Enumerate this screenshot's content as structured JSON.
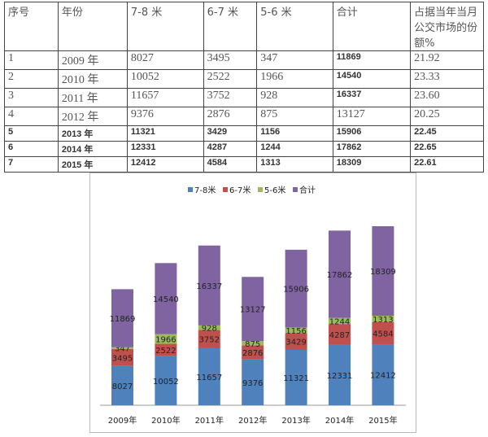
{
  "table": {
    "headers": [
      "序号",
      "年份",
      "7-8 米",
      "6-7 米",
      "5-6 米",
      "合计",
      "占据当年当月公交市场的份额%"
    ],
    "rows": [
      [
        "1",
        "2009 年",
        "8027",
        "3495",
        "347",
        "11869",
        "21.92"
      ],
      [
        "2",
        "2010 年",
        "10052",
        "2522",
        "1966",
        "14540",
        "23.33"
      ],
      [
        "3",
        "2011 年",
        "11657",
        "3752",
        "928",
        "16337",
        "23.60"
      ],
      [
        "4",
        "2012 年",
        "9376",
        "2876",
        "875",
        "13127",
        "20.25"
      ],
      [
        "5",
        "2013 年",
        "11321",
        "3429",
        "1156",
        "15906",
        "22.45"
      ],
      [
        "6",
        "2014 年",
        "12331",
        "4287",
        "1244",
        "17862",
        "22.65"
      ],
      [
        "7",
        "2015 年",
        "12412",
        "4584",
        "1313",
        "18309",
        "22.61"
      ]
    ]
  },
  "chart_data": {
    "type": "bar",
    "stacked": true,
    "categories": [
      "2009年",
      "2010年",
      "2011年",
      "2012年",
      "2013年",
      "2014年",
      "2015年"
    ],
    "series": [
      {
        "name": "7-8米",
        "color": "#4f81bd",
        "values": [
          8027,
          10052,
          11657,
          9376,
          11321,
          12331,
          12412
        ]
      },
      {
        "name": "6-7米",
        "color": "#c0504d",
        "values": [
          3495,
          2522,
          3752,
          2876,
          3429,
          4287,
          4584
        ]
      },
      {
        "name": "5-6米",
        "color": "#9bbb59",
        "values": [
          347,
          1966,
          928,
          875,
          1156,
          1244,
          1313
        ]
      },
      {
        "name": "合计",
        "color": "#8064a2",
        "values": [
          11869,
          14540,
          16337,
          13127,
          15906,
          17862,
          18309
        ]
      }
    ],
    "legend": "top",
    "grid": false,
    "data_labels": true
  }
}
